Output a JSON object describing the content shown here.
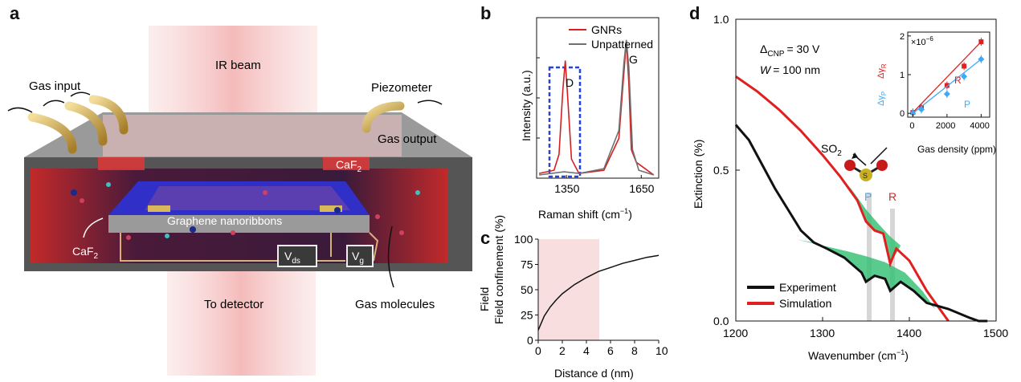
{
  "panels": {
    "a": "a",
    "b": "b",
    "c": "c",
    "d": "d"
  },
  "panel_a": {
    "labels": {
      "gas_input": "Gas input",
      "ir_beam": "IR beam",
      "piezometer": "Piezometer",
      "gas_output": "Gas output",
      "caf2_top": "CaF",
      "caf2_left": "CaF",
      "sub2": "2",
      "graphene": "Graphene nanoribbons",
      "vds": "V",
      "vds_sub": "ds",
      "vg": "V",
      "vg_sub": "g",
      "to_detector": "To detector",
      "gas_molecules": "Gas molecules"
    },
    "colors": {
      "chamber": "#6b6b6b",
      "beam": "#f4b8b8",
      "tube": "#c9a54a",
      "plate": "#3a3ad0"
    }
  },
  "chart_data": [
    {
      "id": "b",
      "type": "line",
      "xlabel": "Raman shift (cm",
      "xlabel_unit": "−1",
      "ylabel": "Intensity (a.u.)",
      "xticks": [
        1350,
        1650
      ],
      "xlim": [
        1230,
        1720
      ],
      "legend": [
        "GNRs",
        "Unpatterned"
      ],
      "annotations": [
        "D",
        "G"
      ],
      "series": [
        {
          "name": "GNRs",
          "color": "#d42020",
          "x": [
            1240,
            1300,
            1320,
            1335,
            1345,
            1355,
            1370,
            1400,
            1500,
            1560,
            1580,
            1590,
            1600,
            1610,
            1630,
            1700
          ],
          "y": [
            0.03,
            0.05,
            0.15,
            0.55,
            0.74,
            0.5,
            0.12,
            0.03,
            0.05,
            0.25,
            0.66,
            0.86,
            0.6,
            0.18,
            0.1,
            0.02
          ]
        },
        {
          "name": "Unpatterned",
          "color": "#707070",
          "x": [
            1240,
            1340,
            1400,
            1500,
            1560,
            1580,
            1590,
            1600,
            1615,
            1640,
            1700
          ],
          "y": [
            0.02,
            0.04,
            0.03,
            0.06,
            0.3,
            0.72,
            0.87,
            0.7,
            0.18,
            0.05,
            0.02
          ]
        }
      ]
    },
    {
      "id": "c",
      "type": "line",
      "xlabel": "Distance d (nm)",
      "ylabel": "Field confinement (%)",
      "xticks": [
        0,
        2,
        4,
        6,
        8,
        10
      ],
      "yticks": [
        0,
        25,
        50,
        75,
        100
      ],
      "xlim": [
        0,
        10
      ],
      "ylim": [
        0,
        100
      ],
      "shaded_region": [
        0,
        5
      ],
      "series": [
        {
          "name": "confinement",
          "x": [
            0,
            0.5,
            1,
            1.5,
            2,
            3,
            4,
            5,
            6,
            7,
            8,
            9,
            10
          ],
          "y": [
            10,
            24,
            33,
            40,
            46,
            55,
            62,
            68,
            72,
            76,
            79,
            82,
            84
          ]
        }
      ]
    },
    {
      "id": "d",
      "type": "line",
      "xlabel": "Wavenumber (cm",
      "xlabel_unit": "−1",
      "ylabel": "Extinction (%)",
      "xticks": [
        1200,
        1300,
        1400,
        1500
      ],
      "yticks": [
        0.0,
        0.5,
        1.0
      ],
      "ytick_labels": [
        "0.0",
        "0.5",
        "1.0"
      ],
      "xlim": [
        1200,
        1500
      ],
      "ylim": [
        0,
        1.0
      ],
      "annotations": {
        "delta": "Δ",
        "delta_sub": "CNP",
        "delta_val": "= 30 V",
        "w": "W",
        "w_val": "= 100 nm",
        "so2": "SO",
        "so2_sub": "2",
        "s": "S",
        "o": "O",
        "p": "P",
        "r": "R"
      },
      "legend": [
        "Experiment",
        "Simulation"
      ],
      "series": [
        {
          "name": "Simulation",
          "color": "#e02020",
          "x": [
            1200,
            1225,
            1250,
            1275,
            1300,
            1320,
            1340,
            1350,
            1360,
            1370,
            1378,
            1385,
            1400,
            1420,
            1445
          ],
          "y": [
            0.81,
            0.76,
            0.7,
            0.63,
            0.55,
            0.48,
            0.4,
            0.33,
            0.3,
            0.29,
            0.19,
            0.24,
            0.2,
            0.1,
            0.0
          ]
        },
        {
          "name": "Experiment",
          "color": "#111111",
          "x": [
            1200,
            1215,
            1230,
            1245,
            1260,
            1275,
            1290,
            1305,
            1325,
            1345,
            1350,
            1360,
            1372,
            1378,
            1390,
            1405,
            1420,
            1445,
            1470,
            1480,
            1490
          ],
          "y": [
            0.65,
            0.6,
            0.52,
            0.44,
            0.37,
            0.3,
            0.26,
            0.24,
            0.21,
            0.16,
            0.13,
            0.15,
            0.14,
            0.1,
            0.13,
            0.1,
            0.06,
            0.04,
            0.01,
            0.0,
            0.0
          ]
        }
      ],
      "inset": {
        "xlabel": "Gas density (ppm)",
        "ylabel_p": "Δγ",
        "ylabel_p_sub": "P",
        "ylabel_r": "Δγ",
        "ylabel_r_sub": "R",
        "multiplier": "×10",
        "multiplier_exp": "−6",
        "xticks": [
          0,
          2000,
          4000
        ],
        "yticks": [
          0,
          1,
          2
        ],
        "xlim": [
          -300,
          4500
        ],
        "ylim": [
          -0.1,
          2.1
        ],
        "series": [
          {
            "name": "R",
            "color": "#e02020",
            "x": [
              0,
              500,
              2000,
              3000,
              4000
            ],
            "y": [
              0.02,
              0.15,
              0.72,
              1.22,
              1.85
            ]
          },
          {
            "name": "P",
            "color": "#3fa9f5",
            "x": [
              0,
              500,
              2000,
              3000,
              4000
            ],
            "y": [
              0.0,
              0.1,
              0.5,
              0.95,
              1.4
            ]
          }
        ]
      }
    }
  ]
}
